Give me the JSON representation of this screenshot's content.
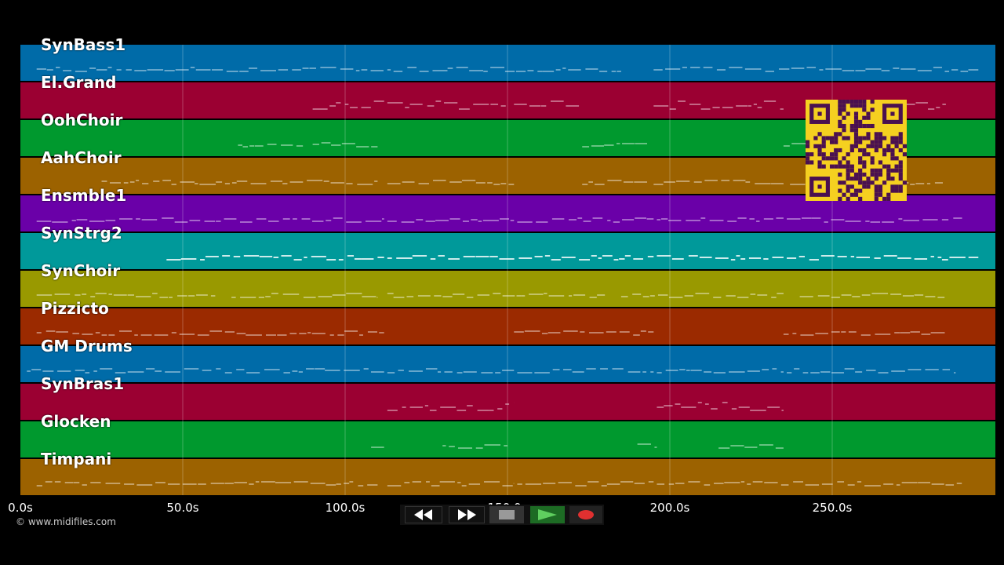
{
  "timeline": {
    "max_seconds": 300,
    "ticks": [
      {
        "value": 0,
        "label": "0.0s"
      },
      {
        "value": 50,
        "label": "50.0s"
      },
      {
        "value": 100,
        "label": "100.0s"
      },
      {
        "value": 150,
        "label": "150.0s"
      },
      {
        "value": 200,
        "label": "200.0s"
      },
      {
        "value": 250,
        "label": "250.0s"
      }
    ]
  },
  "tracks": [
    {
      "name": "SynBass1",
      "color": "#006ba8"
    },
    {
      "name": "El.Grand",
      "color": "#9b0032"
    },
    {
      "name": "OohChoir",
      "color": "#00992e"
    },
    {
      "name": "AahChoir",
      "color": "#9c6200"
    },
    {
      "name": "Ensmble1",
      "color": "#6a00a8"
    },
    {
      "name": "SynStrg2",
      "color": "#00999a"
    },
    {
      "name": "SynChoir",
      "color": "#999900"
    },
    {
      "name": "Pizzicto",
      "color": "#9b2a00"
    },
    {
      "name": "GM Drums",
      "color": "#006ba8"
    },
    {
      "name": "SynBras1",
      "color": "#9b0032"
    },
    {
      "name": "Glocken",
      "color": "#00992e"
    },
    {
      "name": "Timpani",
      "color": "#9c6200"
    }
  ],
  "copyright": "© www.midifiles.com",
  "transport": {
    "rewind_icon": "rewind-icon",
    "fast_forward_icon": "fast-forward-icon",
    "stop_icon": "stop-icon",
    "play_icon": "play-icon",
    "record_icon": "record-icon"
  },
  "qr_icon": "qr-code-icon"
}
